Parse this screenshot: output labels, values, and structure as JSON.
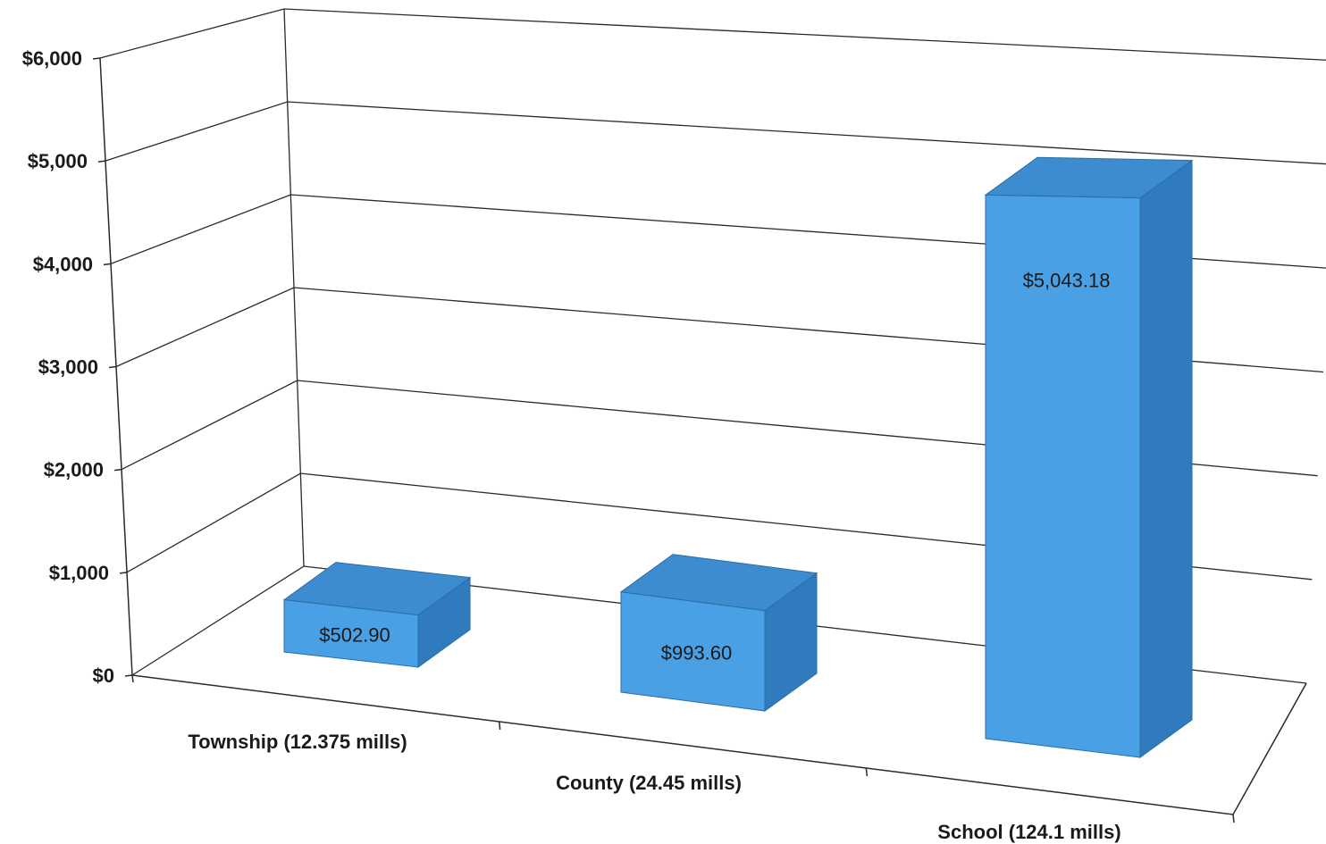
{
  "chart_data": {
    "type": "bar",
    "subtype": "3d-column",
    "categories": [
      "Township (12.375 mills)",
      "County (24.45 mills)",
      "School (124.1 mills)"
    ],
    "values": [
      502.9,
      993.6,
      5043.18
    ],
    "data_labels": [
      "$502.90",
      "$993.60",
      "$5,043.18"
    ],
    "yticks": [
      0,
      1000,
      2000,
      3000,
      4000,
      5000,
      6000
    ],
    "ytick_labels": [
      "$0",
      "$1,000",
      "$2,000",
      "$3,000",
      "$4,000",
      "$5,000",
      "$6,000"
    ],
    "ylim": [
      0,
      6000
    ],
    "title": "",
    "xlabel": "",
    "ylabel": "",
    "grid": true,
    "legend": "none",
    "colors": {
      "bar_front": "#4aa0e4",
      "bar_top": "#3d8cd0",
      "bar_side": "#2f7bbd",
      "bar_edge": "#2a6ea8"
    }
  }
}
